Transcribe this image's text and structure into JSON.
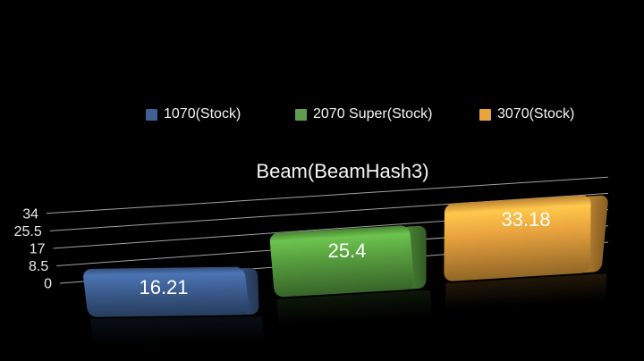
{
  "frame": {
    "background": "#000000"
  },
  "chart_data": {
    "type": "bar",
    "style": "3d-perspective-rounded-slabs",
    "title": "Beam(BeamHash3)",
    "categories": [
      "1070(Stock)",
      "2070 Super(Stock)",
      "3070(Stock)"
    ],
    "values": [
      16.21,
      25.4,
      33.18
    ],
    "value_labels": [
      "16.21",
      "25.4",
      "33.18"
    ],
    "series_colors": [
      "#3e6094",
      "#59a140",
      "#eaa43e"
    ],
    "ylim": [
      0,
      34
    ],
    "yticks": [
      0,
      8.5,
      17,
      25.5,
      34
    ],
    "ytick_labels": [
      "0",
      "8.5",
      "17",
      "25.5",
      "34"
    ],
    "grid": true,
    "gridline_color": "#bfbfbf",
    "tick_text_color": "#e8e8e8",
    "value_text_color": "#ffffff",
    "background": "#000000",
    "legend_position": "top",
    "legend": [
      {
        "label": "1070(Stock)",
        "color": "#3e6094"
      },
      {
        "label": "2070 Super(Stock)",
        "color": "#5f9e50"
      },
      {
        "label": "3070(Stock)",
        "color": "#eaa43e"
      }
    ]
  }
}
